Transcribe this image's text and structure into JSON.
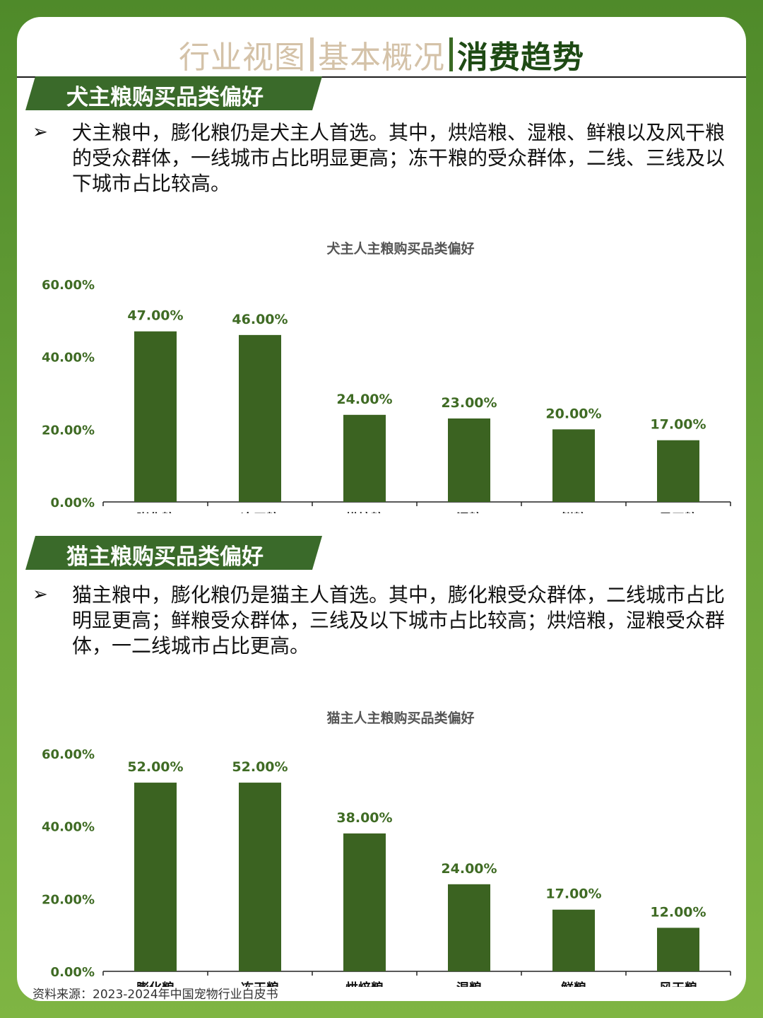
{
  "header": {
    "tabs": [
      {
        "label": "行业视图",
        "active": false
      },
      {
        "label": "基本概况",
        "active": false
      },
      {
        "label": "消费趋势",
        "active": true
      }
    ]
  },
  "sections": [
    {
      "banner": "犬主粮购买品类偏好",
      "bullet": "➢",
      "text": "犬主粮中，膨化粮仍是犬主人首选。其中，烘焙粮、湿粮、鲜粮以及风干粮的受众群体，一线城市占比明显更高；冻干粮的受众群体，二线、三线及以下城市占比较高。"
    },
    {
      "banner": "猫主粮购买品类偏好",
      "bullet": "➢",
      "text": "猫主粮中，膨化粮仍是猫主人首选。其中，膨化粮受众群体，二线城市占比明显更高；鲜粮受众群体，三线及以下城市占比较高；烘焙粮，湿粮受众群体，一二线城市占比更高。"
    }
  ],
  "chart_data": [
    {
      "type": "bar",
      "title": "犬主人主粮购买品类偏好",
      "categories": [
        "膨化粮",
        "冻干粮",
        "烘焙粮",
        "湿粮",
        "鲜粮",
        "风干粮"
      ],
      "values": [
        47,
        46,
        24,
        23,
        20,
        17
      ],
      "value_labels": [
        "47.00%",
        "46.00%",
        "24.00%",
        "23.00%",
        "20.00%",
        "17.00%"
      ],
      "yticks": [
        "0.00%",
        "20.00%",
        "40.00%",
        "60.00%"
      ],
      "ylim": [
        0,
        60
      ],
      "grid": false,
      "color": "#3b6321",
      "label_color": "#3f6b24"
    },
    {
      "type": "bar",
      "title": "猫主人主粮购买品类偏好",
      "categories": [
        "膨化粮",
        "冻干粮",
        "烘焙粮",
        "湿粮",
        "鲜粮",
        "风干粮"
      ],
      "values": [
        52,
        52,
        38,
        24,
        17,
        12
      ],
      "value_labels": [
        "52.00%",
        "52.00%",
        "38.00%",
        "24.00%",
        "17.00%",
        "12.00%"
      ],
      "yticks": [
        "0.00%",
        "20.00%",
        "40.00%",
        "60.00%"
      ],
      "ylim": [
        0,
        60
      ],
      "grid": false,
      "color": "#3b6321",
      "label_color": "#3f6b24"
    }
  ],
  "footer": {
    "source": "资料来源：2023-2024年中国宠物行业白皮书"
  }
}
